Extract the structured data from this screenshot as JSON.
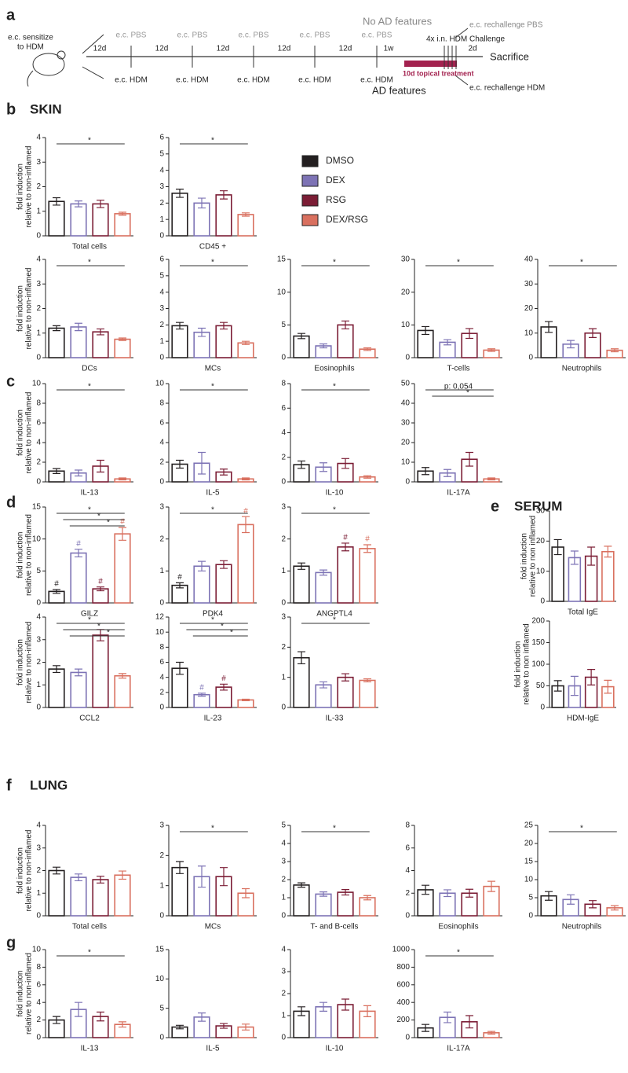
{
  "timeline": {
    "label": "a",
    "sensitize": [
      "e.c. sensitize",
      "to HDM"
    ],
    "intervals": [
      "12d",
      "12d",
      "12d",
      "12d",
      "12d",
      "1w",
      "2d"
    ],
    "pbs": [
      "e.c. PBS",
      "e.c. PBS",
      "e.c. PBS",
      "e.c. PBS",
      "e.c. PBS"
    ],
    "hdm": [
      "e.c. HDM",
      "e.c. HDM",
      "e.c. HDM",
      "e.c. HDM",
      "e.c. HDM"
    ],
    "no_ad": "No AD features",
    "ad": "AD features",
    "rechallenge_pbs": "e.c. rechallenge PBS",
    "rechallenge_hdm": "e.c. rechallenge HDM",
    "challenge": "4x i.n. HDM Challenge",
    "treatment": "10d topical treatment",
    "sacrifice": "Sacrifice"
  },
  "sections": [
    {
      "letter": "b",
      "title": "SKIN"
    },
    {
      "letter": "c"
    },
    {
      "letter": "d"
    },
    {
      "letter": "e",
      "title": "SERUM"
    },
    {
      "letter": "f",
      "title": "LUNG"
    },
    {
      "letter": "g"
    }
  ],
  "legend": {
    "names": [
      "DMSO",
      "DEX",
      "RSG",
      "DEX/RSG"
    ],
    "colors": [
      "#231f20",
      "#7d73b5",
      "#7b1d35",
      "#d9705f"
    ]
  },
  "chart_data": [
    {
      "type": "bar",
      "xlabel": "Total cells",
      "ylabel": [
        "fold induction",
        "relative to non-inflamed"
      ],
      "ylim": [
        0,
        4
      ],
      "yticks": [
        0,
        1,
        2,
        3,
        4
      ],
      "values": [
        1.4,
        1.3,
        1.3,
        0.9
      ],
      "errors": [
        0.15,
        0.12,
        0.15,
        0.06
      ],
      "annotations": [
        "*"
      ]
    },
    {
      "type": "bar",
      "xlabel": "CD45 +",
      "ylim": [
        0,
        6
      ],
      "yticks": [
        0,
        1,
        2,
        3,
        4,
        5,
        6
      ],
      "values": [
        2.6,
        2.0,
        2.5,
        1.3
      ],
      "errors": [
        0.25,
        0.3,
        0.25,
        0.1
      ],
      "annotations": [
        "*"
      ]
    },
    {
      "type": "bar",
      "xlabel": "DCs",
      "ylabel": [
        "fold induction",
        "relative to non-inflamed"
      ],
      "ylim": [
        0,
        4
      ],
      "yticks": [
        0,
        1,
        2,
        3,
        4
      ],
      "values": [
        1.2,
        1.25,
        1.05,
        0.75
      ],
      "errors": [
        0.1,
        0.15,
        0.12,
        0.05
      ],
      "annotations": [
        "*"
      ]
    },
    {
      "type": "bar",
      "xlabel": "MCs",
      "ylim": [
        0,
        6
      ],
      "yticks": [
        0,
        1,
        2,
        3,
        4,
        5,
        6
      ],
      "values": [
        1.95,
        1.55,
        1.95,
        0.9
      ],
      "errors": [
        0.2,
        0.25,
        0.2,
        0.1
      ],
      "annotations": [
        "*"
      ]
    },
    {
      "type": "bar",
      "xlabel": "Eosinophils",
      "ylim": [
        0,
        15
      ],
      "yticks": [
        0,
        5,
        10,
        15
      ],
      "values": [
        3.3,
        1.8,
        5.0,
        1.3
      ],
      "errors": [
        0.4,
        0.3,
        0.6,
        0.2
      ],
      "annotations": [
        "*"
      ]
    },
    {
      "type": "bar",
      "xlabel": "T-cells",
      "ylim": [
        0,
        30
      ],
      "yticks": [
        0,
        10,
        20,
        30
      ],
      "values": [
        8.3,
        4.7,
        7.4,
        2.3
      ],
      "errors": [
        1.2,
        0.8,
        1.5,
        0.4
      ],
      "annotations": [
        "*"
      ]
    },
    {
      "type": "bar",
      "xlabel": "Neutrophils",
      "ylim": [
        0,
        40
      ],
      "yticks": [
        0,
        10,
        20,
        30,
        40
      ],
      "values": [
        12.5,
        5.5,
        10,
        3
      ],
      "errors": [
        2.2,
        1.5,
        1.8,
        0.6
      ],
      "annotations": [
        "*"
      ]
    },
    {
      "type": "bar",
      "xlabel": "IL-13",
      "ylabel": [
        "fold induction",
        "relative to non-inflamed"
      ],
      "ylim": [
        0,
        10
      ],
      "yticks": [
        0,
        2,
        4,
        6,
        8,
        10
      ],
      "values": [
        1.1,
        0.9,
        1.6,
        0.3
      ],
      "errors": [
        0.25,
        0.3,
        0.6,
        0.1
      ],
      "annotations": [
        "*"
      ]
    },
    {
      "type": "bar",
      "xlabel": "IL-5",
      "ylim": [
        0,
        10
      ],
      "yticks": [
        0,
        2,
        4,
        6,
        8,
        10
      ],
      "values": [
        1.8,
        1.9,
        1.0,
        0.3
      ],
      "errors": [
        0.4,
        1.1,
        0.3,
        0.1
      ],
      "annotations": [
        "*"
      ]
    },
    {
      "type": "bar",
      "xlabel": "IL-10",
      "ylim": [
        0,
        8
      ],
      "yticks": [
        0,
        2,
        4,
        6,
        8
      ],
      "values": [
        1.4,
        1.2,
        1.5,
        0.4
      ],
      "errors": [
        0.3,
        0.35,
        0.4,
        0.1
      ],
      "annotations": [
        "*"
      ]
    },
    {
      "type": "bar",
      "xlabel": "IL-17A",
      "ylim": [
        0,
        50
      ],
      "yticks": [
        0,
        10,
        20,
        30,
        40,
        50
      ],
      "values": [
        5.5,
        4.5,
        11.5,
        1.5
      ],
      "errors": [
        1.8,
        1.8,
        3.5,
        0.5
      ],
      "annotations": [
        "p: 0,054",
        "*"
      ]
    },
    {
      "type": "bar",
      "xlabel": "GILZ",
      "ylabel": [
        "fold induction",
        "relative to non-inflamed"
      ],
      "ylim": [
        0,
        15
      ],
      "yticks": [
        0,
        5,
        10,
        15
      ],
      "values": [
        1.8,
        7.8,
        2.2,
        10.8
      ],
      "errors": [
        0.3,
        0.6,
        0.3,
        1.0
      ],
      "bar_marks": [
        "#",
        "#",
        "#",
        "#"
      ],
      "annotations": [
        "*",
        "*",
        "*"
      ]
    },
    {
      "type": "bar",
      "xlabel": "PDK4",
      "ylim": [
        0,
        3
      ],
      "yticks": [
        0,
        1,
        2,
        3
      ],
      "values": [
        0.55,
        1.15,
        1.2,
        2.45
      ],
      "errors": [
        0.08,
        0.15,
        0.12,
        0.25
      ],
      "bar_marks": [
        "#",
        null,
        null,
        "#"
      ],
      "annotations": [
        "*"
      ]
    },
    {
      "type": "bar",
      "xlabel": "ANGPTL4",
      "ylim": [
        0,
        3
      ],
      "yticks": [
        0,
        1,
        2,
        3
      ],
      "values": [
        1.15,
        0.95,
        1.75,
        1.7
      ],
      "errors": [
        0.1,
        0.08,
        0.12,
        0.12
      ],
      "bar_marks": [
        null,
        null,
        "#",
        "#"
      ],
      "annotations": [
        "*"
      ]
    },
    {
      "type": "bar",
      "xlabel": "CCL2",
      "ylabel": [
        "fold induction",
        "relative to non-inflamed"
      ],
      "ylim": [
        0,
        4
      ],
      "yticks": [
        0,
        1,
        2,
        3,
        4
      ],
      "values": [
        1.7,
        1.55,
        3.2,
        1.4
      ],
      "errors": [
        0.15,
        0.15,
        0.25,
        0.1
      ],
      "annotations": [
        "*",
        "*",
        "*"
      ]
    },
    {
      "type": "bar",
      "xlabel": "IL-23",
      "ylim": [
        0,
        12
      ],
      "yticks": [
        0,
        2,
        4,
        6,
        8,
        10,
        12
      ],
      "values": [
        5.2,
        1.7,
        2.7,
        1.0
      ],
      "errors": [
        0.8,
        0.2,
        0.4,
        0.1
      ],
      "bar_marks": [
        null,
        "#",
        "#",
        null
      ],
      "annotations": [
        "*",
        "*",
        "*"
      ]
    },
    {
      "type": "bar",
      "xlabel": "IL-33",
      "ylim": [
        0,
        3
      ],
      "yticks": [
        0,
        1,
        2,
        3
      ],
      "values": [
        1.65,
        0.75,
        1.0,
        0.9
      ],
      "errors": [
        0.2,
        0.1,
        0.12,
        0.05
      ],
      "annotations": [
        "*"
      ]
    },
    {
      "type": "bar",
      "xlabel": "Total IgE",
      "ylabel": [
        "fold induction",
        "relative to non inflamed"
      ],
      "ylim": [
        0,
        30
      ],
      "yticks": [
        0,
        10,
        20,
        30
      ],
      "values": [
        18,
        14.5,
        15,
        16.5
      ],
      "errors": [
        2.5,
        2.2,
        3,
        1.8
      ]
    },
    {
      "type": "bar",
      "xlabel": "HDM-IgE",
      "ylabel": [
        "fold induction",
        "relative to non inflamed"
      ],
      "ylim": [
        0,
        200
      ],
      "yticks": [
        0,
        50,
        100,
        150,
        200
      ],
      "values": [
        50,
        50,
        70,
        48
      ],
      "errors": [
        12,
        22,
        18,
        15
      ]
    },
    {
      "type": "bar",
      "xlabel": "Total cells",
      "ylabel": [
        "fold induction",
        "relative to non-inflamed"
      ],
      "ylim": [
        0,
        4
      ],
      "yticks": [
        0,
        1,
        2,
        3,
        4
      ],
      "values": [
        2.0,
        1.7,
        1.6,
        1.8
      ],
      "errors": [
        0.15,
        0.15,
        0.15,
        0.18
      ]
    },
    {
      "type": "bar",
      "xlabel": "MCs",
      "ylim": [
        0,
        3
      ],
      "yticks": [
        0,
        1,
        2,
        3
      ],
      "values": [
        1.6,
        1.3,
        1.3,
        0.75
      ],
      "errors": [
        0.2,
        0.35,
        0.3,
        0.15
      ],
      "annotations": [
        "*"
      ]
    },
    {
      "type": "bar",
      "xlabel": "T- and B-cells",
      "ylim": [
        0,
        5
      ],
      "yticks": [
        0,
        1,
        2,
        3,
        4,
        5
      ],
      "values": [
        1.7,
        1.2,
        1.3,
        1.0
      ],
      "errors": [
        0.12,
        0.12,
        0.15,
        0.12
      ],
      "annotations": [
        "*"
      ]
    },
    {
      "type": "bar",
      "xlabel": "Eosinophils",
      "ylim": [
        0,
        8
      ],
      "yticks": [
        0,
        2,
        4,
        6,
        8
      ],
      "values": [
        2.3,
        2.0,
        2.0,
        2.6
      ],
      "errors": [
        0.4,
        0.3,
        0.35,
        0.45
      ]
    },
    {
      "type": "bar",
      "xlabel": "Neutrophils",
      "ylim": [
        0,
        25
      ],
      "yticks": [
        0,
        5,
        10,
        15,
        20,
        25
      ],
      "values": [
        5.5,
        4.5,
        3.2,
        2.2
      ],
      "errors": [
        1.2,
        1.3,
        1.0,
        0.6
      ],
      "annotations": [
        "*"
      ]
    },
    {
      "type": "bar",
      "xlabel": "IL-13",
      "ylabel": [
        "fold induction",
        "relative to non-inflamed"
      ],
      "ylim": [
        0,
        10
      ],
      "yticks": [
        0,
        2,
        4,
        6,
        8,
        10
      ],
      "values": [
        2.0,
        3.2,
        2.4,
        1.5
      ],
      "errors": [
        0.4,
        0.8,
        0.5,
        0.3
      ],
      "annotations": [
        "*"
      ]
    },
    {
      "type": "bar",
      "xlabel": "IL-5",
      "ylim": [
        0,
        15
      ],
      "yticks": [
        0,
        5,
        10,
        15
      ],
      "values": [
        1.8,
        3.5,
        2.0,
        1.8
      ],
      "errors": [
        0.3,
        0.7,
        0.4,
        0.5
      ]
    },
    {
      "type": "bar",
      "xlabel": "IL-10",
      "ylim": [
        0,
        4
      ],
      "yticks": [
        0,
        1,
        2,
        3,
        4
      ],
      "values": [
        1.2,
        1.4,
        1.5,
        1.2
      ],
      "errors": [
        0.2,
        0.2,
        0.25,
        0.25
      ]
    },
    {
      "type": "bar",
      "xlabel": "IL-17A",
      "ylim": [
        0,
        1000
      ],
      "yticks": [
        0,
        200,
        400,
        600,
        800,
        1000
      ],
      "values": [
        110,
        230,
        180,
        55
      ],
      "errors": [
        40,
        60,
        70,
        15
      ],
      "annotations": [
        "*"
      ]
    }
  ]
}
